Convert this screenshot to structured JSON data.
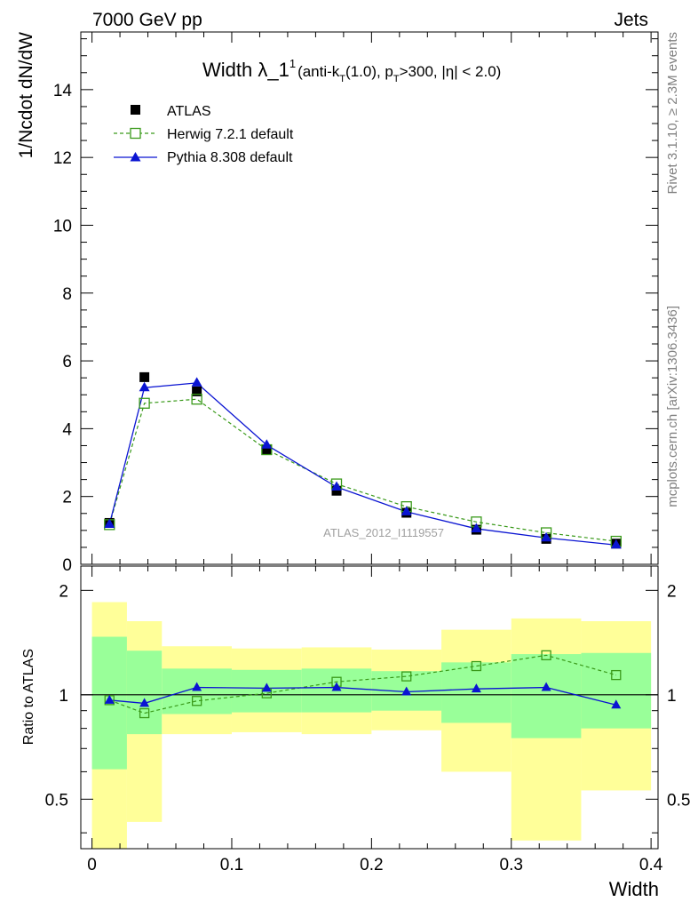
{
  "header": {
    "left": "7000 GeV pp",
    "right": "Jets"
  },
  "title": {
    "main": "Width λ_1",
    "sup": "1",
    "cut_a": "(anti-k",
    "cut_a_sub": "T",
    "cut_b": "(1.0), p",
    "cut_b_sub": "T",
    "cut_c": ">300, |η| < 2.0)"
  },
  "side_texts": {
    "rivet": "Rivet 3.1.10, ≥ 2.3M events",
    "mcplots": "mcplots.cern.ch [arXiv:1306.3436]"
  },
  "analysis_tag": "ATLAS_2012_I1119557",
  "colors": {
    "atlas": "#000000",
    "herwig": "#3a9a1a",
    "pythia": "#0a14d2",
    "band_outer": "#ffff99",
    "band_inner": "#99ff99"
  },
  "chart_data": [
    {
      "type": "scatter",
      "panel": "main",
      "ylabel": "1/Ncdot dN/dW",
      "xlim": [
        -0.008,
        0.405
      ],
      "ylim": [
        0,
        15.7
      ],
      "yticks": [
        "0",
        "2",
        "4",
        "6",
        "8",
        "10",
        "12",
        "14"
      ],
      "ytick_values": [
        0,
        2,
        4,
        6,
        8,
        10,
        12,
        14
      ],
      "x": [
        0.0125,
        0.0375,
        0.075,
        0.125,
        0.175,
        0.225,
        0.275,
        0.325,
        0.375
      ],
      "series": [
        {
          "name": "ATLAS",
          "style": "marker-square",
          "values": [
            1.22,
            5.52,
            5.1,
            3.38,
            2.17,
            1.52,
            1.02,
            0.75,
            0.61
          ]
        },
        {
          "name": "Herwig 7.2.1 default",
          "style": "dashed-open-square",
          "values": [
            1.17,
            4.75,
            4.87,
            3.38,
            2.37,
            1.7,
            1.25,
            0.93,
            0.68
          ]
        },
        {
          "name": "Pythia 8.308 default",
          "style": "solid-triangle",
          "values": [
            1.18,
            5.21,
            5.35,
            3.52,
            2.28,
            1.55,
            1.05,
            0.78,
            0.57
          ]
        }
      ]
    },
    {
      "type": "line",
      "panel": "ratio",
      "xlabel": "Width",
      "ylabel": "Ratio to ATLAS",
      "ylog": true,
      "xlim": [
        -0.008,
        0.405
      ],
      "ylim": [
        0.36,
        2.35
      ],
      "xticks": [
        "0",
        "0.1",
        "0.2",
        "0.3",
        "0.4"
      ],
      "xtick_values": [
        0,
        0.1,
        0.2,
        0.3,
        0.4
      ],
      "yticks": [
        "0.5",
        "1",
        "2"
      ],
      "ytick_values": [
        0.5,
        1,
        2
      ],
      "bins": [
        [
          0,
          0.025
        ],
        [
          0.025,
          0.05
        ],
        [
          0.05,
          0.1
        ],
        [
          0.1,
          0.15
        ],
        [
          0.15,
          0.2
        ],
        [
          0.2,
          0.25
        ],
        [
          0.25,
          0.3
        ],
        [
          0.3,
          0.35
        ],
        [
          0.35,
          0.4
        ]
      ],
      "band_outer": [
        [
          0.3,
          1.85
        ],
        [
          0.43,
          1.63
        ],
        [
          0.77,
          1.38
        ],
        [
          0.78,
          1.36
        ],
        [
          0.77,
          1.37
        ],
        [
          0.79,
          1.35
        ],
        [
          0.6,
          1.54
        ],
        [
          0.38,
          1.66
        ],
        [
          0.53,
          1.63
        ]
      ],
      "band_inner": [
        [
          0.61,
          1.47
        ],
        [
          0.77,
          1.34
        ],
        [
          0.88,
          1.19
        ],
        [
          0.89,
          1.18
        ],
        [
          0.89,
          1.19
        ],
        [
          0.9,
          1.17
        ],
        [
          0.83,
          1.24
        ],
        [
          0.75,
          1.31
        ],
        [
          0.8,
          1.32
        ]
      ],
      "x": [
        0.0125,
        0.0375,
        0.075,
        0.125,
        0.175,
        0.225,
        0.275,
        0.325,
        0.375
      ],
      "series": [
        {
          "name": "Herwig 7.2.1 default",
          "values": [
            0.965,
            0.885,
            0.96,
            1.01,
            1.09,
            1.13,
            1.21,
            1.3,
            1.14
          ]
        },
        {
          "name": "Pythia 8.308 default",
          "values": [
            0.965,
            0.945,
            1.05,
            1.045,
            1.05,
            1.02,
            1.04,
            1.05,
            0.935
          ]
        }
      ]
    }
  ]
}
